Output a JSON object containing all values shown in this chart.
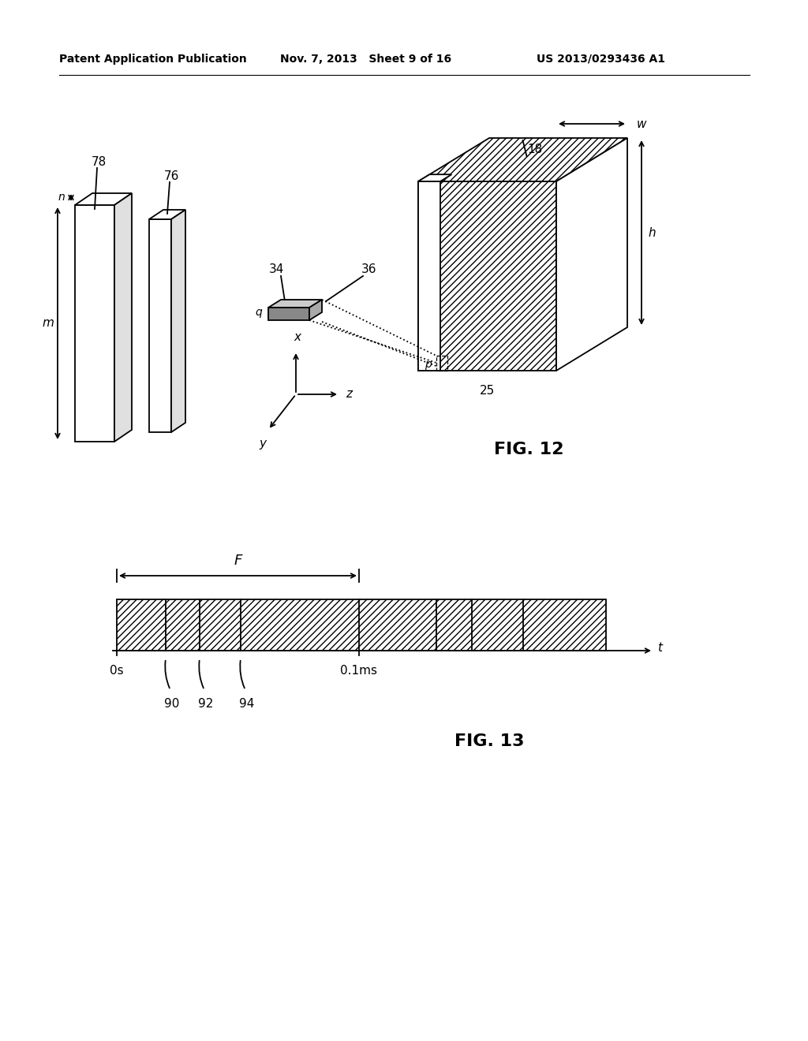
{
  "bg_color": "#ffffff",
  "header_left": "Patent Application Publication",
  "header_mid": "Nov. 7, 2013   Sheet 9 of 16",
  "header_right": "US 2013/0293436 A1",
  "fig12_label": "FIG. 12",
  "fig13_label": "FIG. 13",
  "line_color": "#000000"
}
